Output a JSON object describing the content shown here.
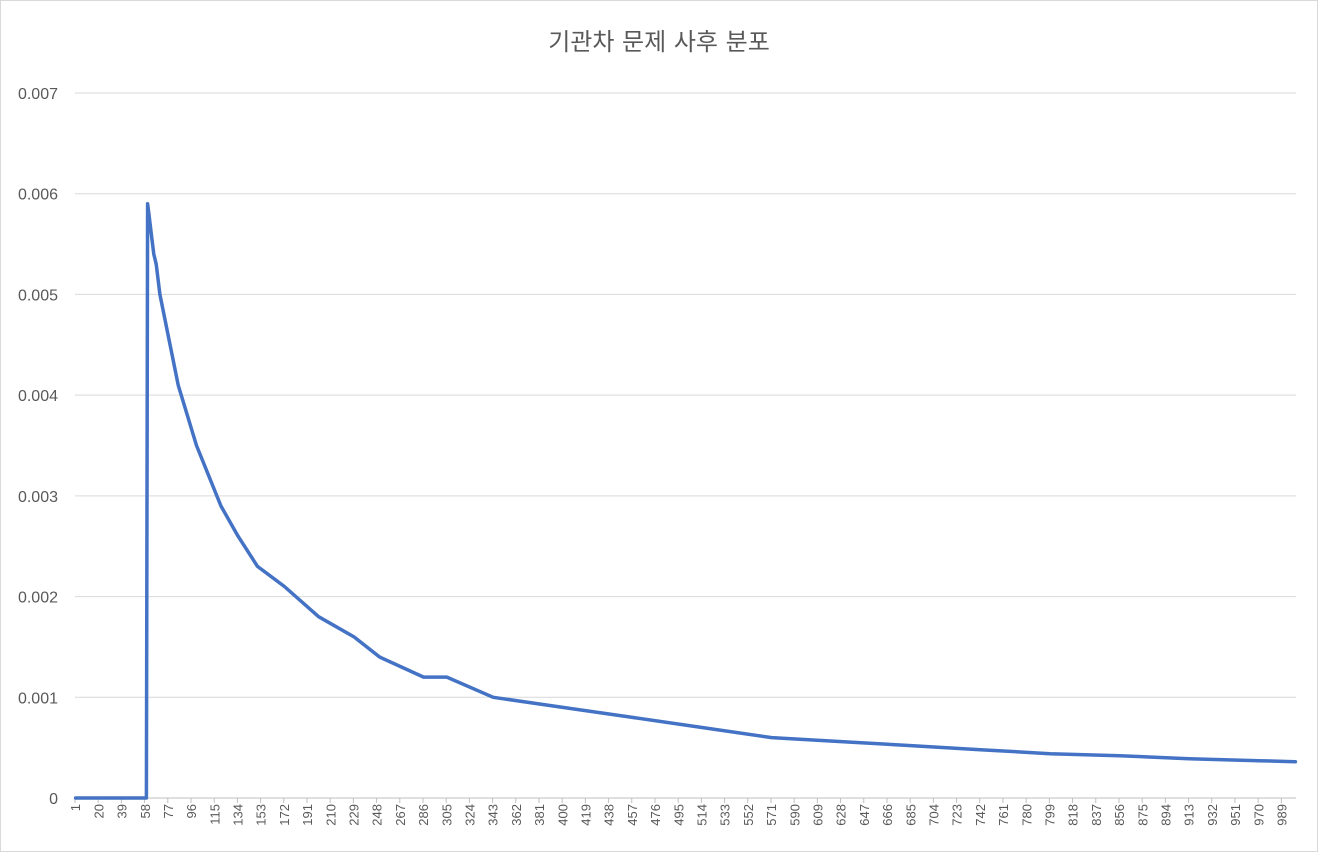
{
  "chart_data": {
    "type": "line",
    "title": "기관차 문제 사후 분포",
    "xlabel": "",
    "ylabel": "",
    "ylim": [
      0,
      0.007
    ],
    "y_ticks": [
      "0",
      "0.001",
      "0.002",
      "0.003",
      "0.004",
      "0.005",
      "0.006",
      "0.007"
    ],
    "x_range": [
      1,
      1000
    ],
    "x_tick_labels": [
      "1",
      "20",
      "39",
      "58",
      "77",
      "96",
      "115",
      "134",
      "153",
      "172",
      "191",
      "210",
      "229",
      "248",
      "267",
      "286",
      "305",
      "324",
      "343",
      "362",
      "381",
      "400",
      "419",
      "438",
      "457",
      "476",
      "495",
      "514",
      "533",
      "552",
      "571",
      "590",
      "609",
      "628",
      "647",
      "666",
      "685",
      "704",
      "723",
      "742",
      "761",
      "780",
      "799",
      "818",
      "837",
      "856",
      "875",
      "894",
      "913",
      "932",
      "951",
      "970",
      "989"
    ],
    "grid": "horizontal",
    "legend": "none",
    "colors": {
      "series": "#4472c4",
      "grid": "#d9d9d9",
      "text": "#595959"
    },
    "series": [
      {
        "x": [
          1,
          59,
          60,
          61,
          62,
          63,
          65,
          67,
          70,
          75,
          80,
          85,
          90,
          100,
          110,
          120,
          134,
          150,
          172,
          200,
          229,
          250,
          286,
          305,
          343,
          400,
          457,
          514,
          571,
          628,
          685,
          742,
          799,
          856,
          913,
          970,
          1000
        ],
        "values": [
          0,
          0,
          0.0059,
          0.0058,
          0.0057,
          0.0056,
          0.0054,
          0.0053,
          0.005,
          0.0047,
          0.0044,
          0.0041,
          0.0039,
          0.0035,
          0.0032,
          0.0029,
          0.0026,
          0.0023,
          0.0021,
          0.0018,
          0.0016,
          0.0014,
          0.0012,
          0.0012,
          0.001,
          0.0009,
          0.0008,
          0.0007,
          0.0006,
          0.00056,
          0.00052,
          0.00048,
          0.00044,
          0.00042,
          0.00039,
          0.00037,
          0.00036
        ]
      }
    ]
  }
}
